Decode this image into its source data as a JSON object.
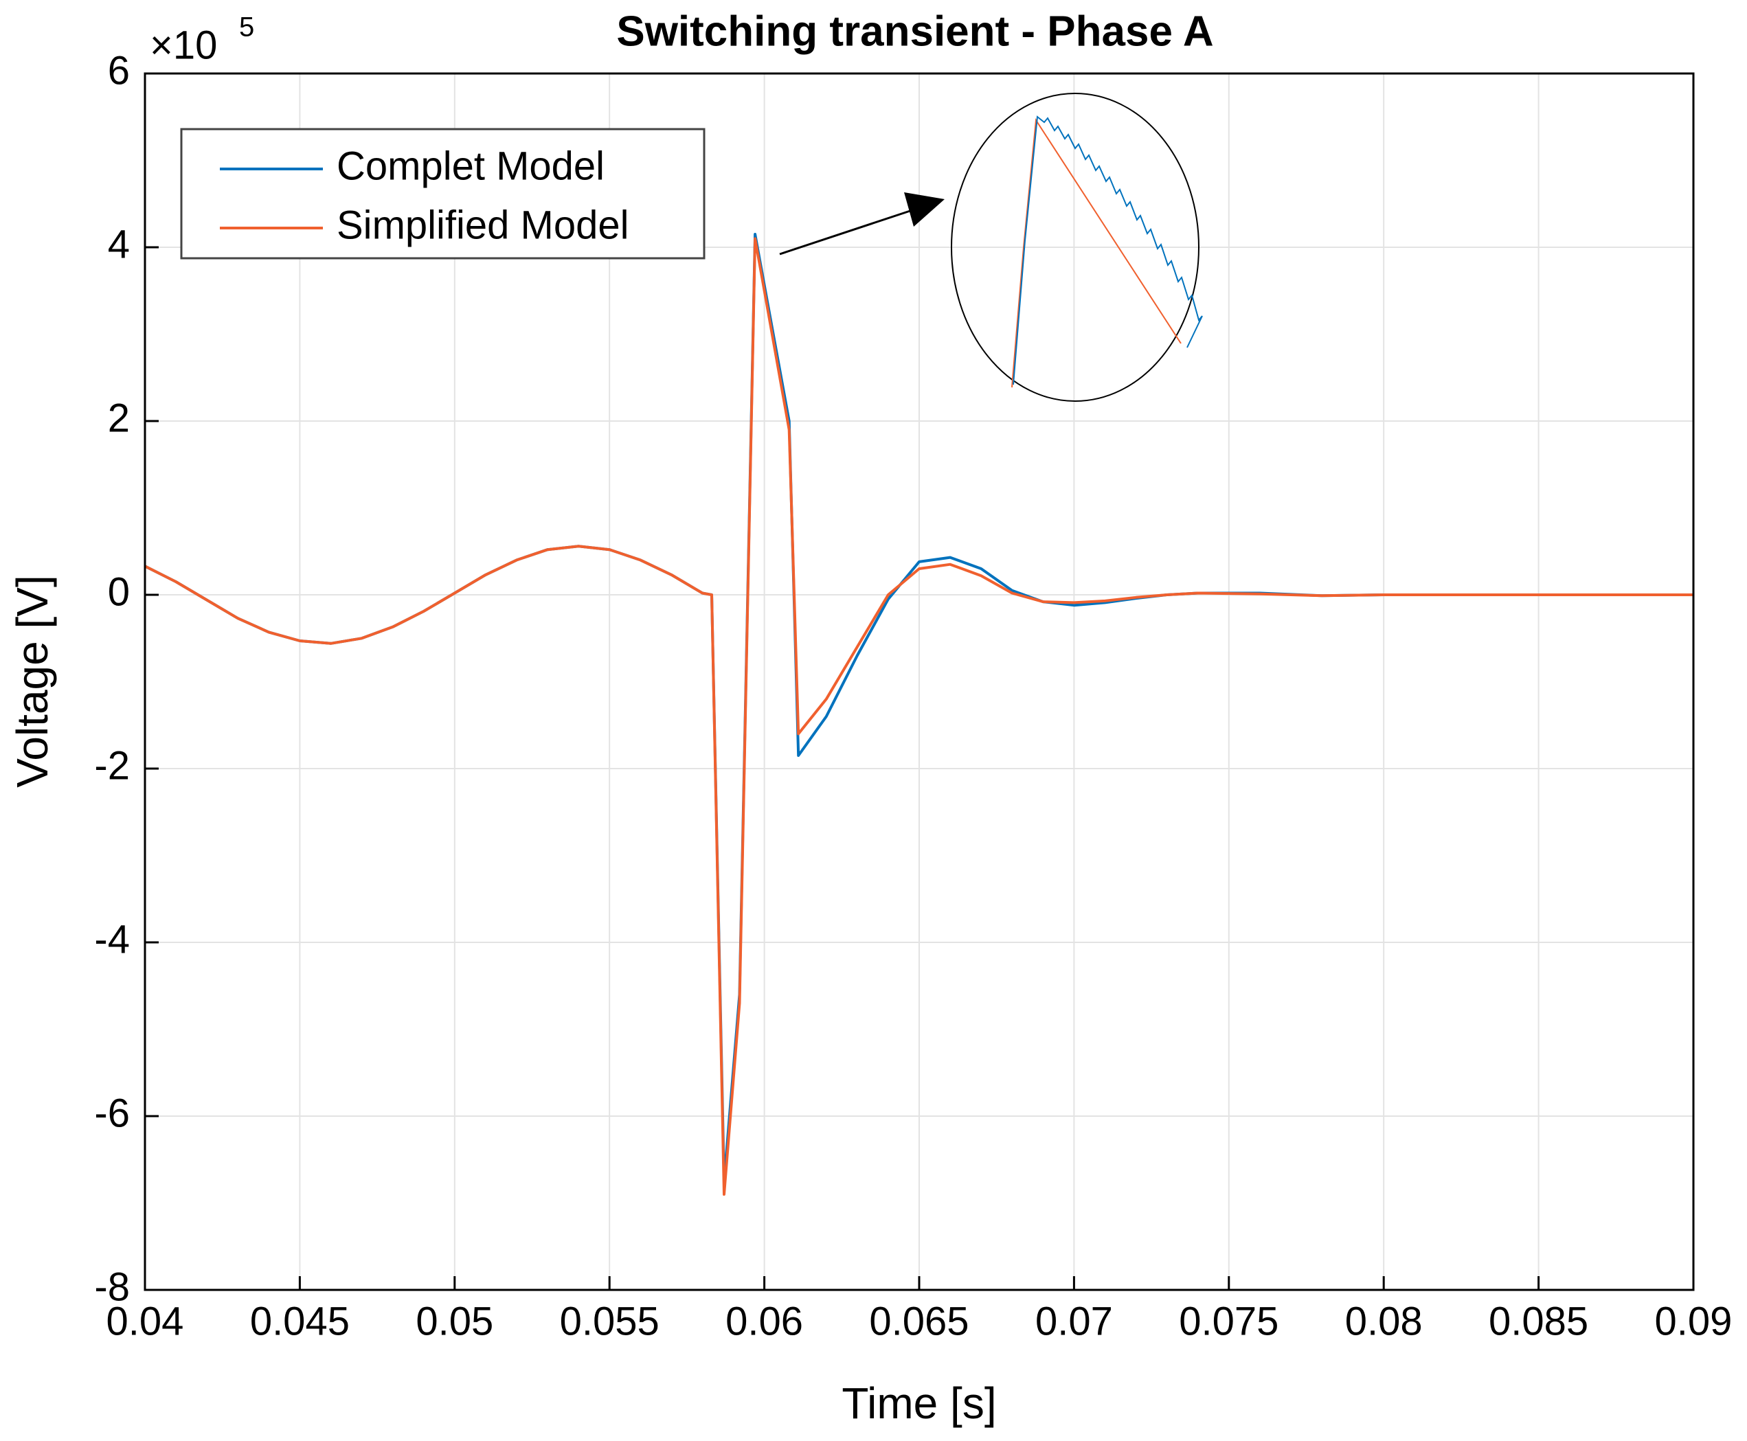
{
  "chart_data": {
    "type": "line",
    "title": "Switching transient - Phase A",
    "x_label": "Time [s]",
    "y_label": "Voltage [V]",
    "y_multiplier": {
      "base": "×10",
      "exponent": "5"
    },
    "x": [
      0.04,
      0.041,
      0.042,
      0.043,
      0.044,
      0.045,
      0.046,
      0.047,
      0.048,
      0.049,
      0.05,
      0.051,
      0.052,
      0.053,
      0.054,
      0.055,
      0.056,
      0.057,
      0.058,
      0.0583,
      0.0587,
      0.0592,
      0.0597,
      0.0608,
      0.0611,
      0.062,
      0.063,
      0.064,
      0.065,
      0.066,
      0.067,
      0.068,
      0.069,
      0.07,
      0.071,
      0.072,
      0.073,
      0.074,
      0.076,
      0.078,
      0.08,
      0.085,
      0.09
    ],
    "series": [
      {
        "name": "Complet Model",
        "color": "#0072bd",
        "values": [
          0.33,
          0.15,
          -0.06,
          -0.27,
          -0.43,
          -0.53,
          -0.56,
          -0.5,
          -0.37,
          -0.19,
          0.02,
          0.23,
          0.4,
          0.52,
          0.56,
          0.52,
          0.4,
          0.23,
          0.02,
          0.0,
          -6.75,
          -4.6,
          4.15,
          2.0,
          -1.85,
          -1.4,
          -0.7,
          -0.05,
          0.38,
          0.43,
          0.3,
          0.05,
          -0.08,
          -0.12,
          -0.09,
          -0.04,
          0.0,
          0.02,
          0.02,
          -0.01,
          0.0,
          0.0,
          0.0
        ]
      },
      {
        "name": "Simplified Model",
        "color": "#f0602e",
        "values": [
          0.33,
          0.15,
          -0.06,
          -0.27,
          -0.43,
          -0.53,
          -0.56,
          -0.5,
          -0.37,
          -0.19,
          0.02,
          0.23,
          0.4,
          0.52,
          0.56,
          0.52,
          0.4,
          0.23,
          0.02,
          0.0,
          -6.9,
          -4.7,
          4.1,
          1.9,
          -1.6,
          -1.2,
          -0.6,
          0.0,
          0.3,
          0.35,
          0.22,
          0.02,
          -0.08,
          -0.09,
          -0.07,
          -0.03,
          0.0,
          0.02,
          0.01,
          -0.01,
          0.0,
          0.0,
          0.0
        ]
      }
    ],
    "xlim": [
      0.04,
      0.09
    ],
    "xticks": [
      0.04,
      0.045,
      0.05,
      0.055,
      0.06,
      0.065,
      0.07,
      0.075,
      0.08,
      0.085,
      0.09
    ],
    "ylim": [
      -8,
      6
    ],
    "yticks": [
      -8,
      -6,
      -4,
      -2,
      0,
      2,
      4,
      6
    ],
    "grid": true,
    "legend": "upper-left"
  }
}
